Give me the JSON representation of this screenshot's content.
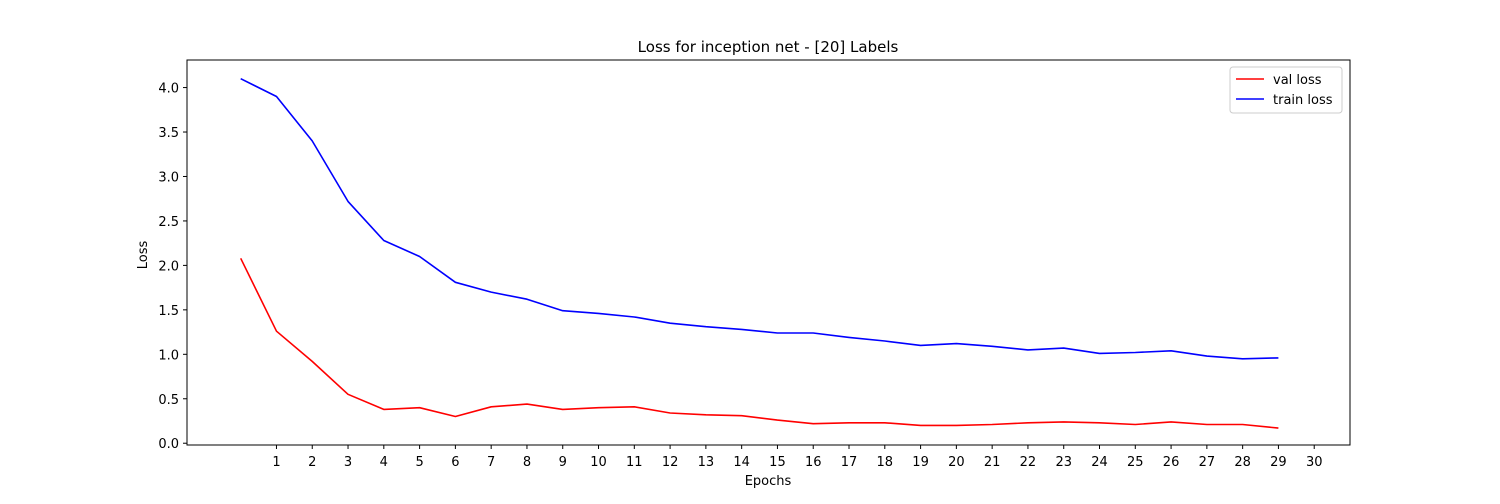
{
  "chart_data": {
    "type": "line",
    "title": "Loss for inception net - [20] Labels",
    "xlabel": "Epochs",
    "ylabel": "Loss",
    "xlim": [
      -1.5,
      31
    ],
    "ylim": [
      -0.02,
      4.31
    ],
    "xticks": [
      1,
      2,
      3,
      4,
      5,
      6,
      7,
      8,
      9,
      10,
      11,
      12,
      13,
      14,
      15,
      16,
      17,
      18,
      19,
      20,
      21,
      22,
      23,
      24,
      25,
      26,
      27,
      28,
      29,
      30
    ],
    "yticks": [
      0.0,
      0.5,
      1.0,
      1.5,
      2.0,
      2.5,
      3.0,
      3.5,
      4.0
    ],
    "ytick_labels": [
      "0.0",
      "0.5",
      "1.0",
      "1.5",
      "2.0",
      "2.5",
      "3.0",
      "3.5",
      "4.0"
    ],
    "x": [
      0,
      1,
      2,
      3,
      4,
      5,
      6,
      7,
      8,
      9,
      10,
      11,
      12,
      13,
      14,
      15,
      16,
      17,
      18,
      19,
      20,
      21,
      22,
      23,
      24,
      25,
      26,
      27,
      28,
      29
    ],
    "series": [
      {
        "name": "val loss",
        "color": "#ff0000",
        "values": [
          2.08,
          1.26,
          0.92,
          0.55,
          0.38,
          0.4,
          0.3,
          0.41,
          0.44,
          0.38,
          0.4,
          0.41,
          0.34,
          0.32,
          0.31,
          0.26,
          0.22,
          0.23,
          0.23,
          0.2,
          0.2,
          0.21,
          0.23,
          0.24,
          0.23,
          0.21,
          0.24,
          0.21,
          0.21,
          0.17
        ]
      },
      {
        "name": "train loss",
        "color": "#0000ff",
        "values": [
          4.1,
          3.9,
          3.4,
          2.72,
          2.28,
          2.1,
          1.81,
          1.7,
          1.62,
          1.49,
          1.46,
          1.42,
          1.35,
          1.31,
          1.28,
          1.24,
          1.24,
          1.19,
          1.15,
          1.1,
          1.12,
          1.09,
          1.05,
          1.07,
          1.01,
          1.02,
          1.04,
          0.98,
          0.95,
          0.96
        ]
      }
    ],
    "grid": false,
    "legend": "top-right"
  }
}
